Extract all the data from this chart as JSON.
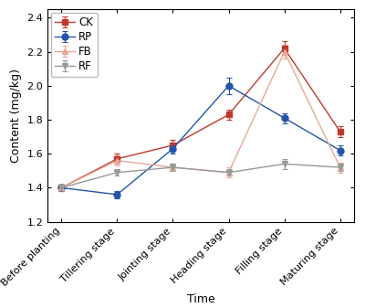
{
  "x_labels": [
    "Before planting",
    "Tillering stage",
    "Jointing stage",
    "Heading stage",
    "Filling stage",
    "Maturing stage"
  ],
  "series": {
    "CK": {
      "values": [
        1.4,
        1.57,
        1.65,
        1.83,
        2.22,
        1.73
      ],
      "errors": [
        0.02,
        0.03,
        0.03,
        0.03,
        0.04,
        0.03
      ],
      "color": "#c0392b",
      "marker": "s",
      "markersize": 5,
      "linewidth": 1.0,
      "linestyle": "-"
    },
    "RP": {
      "values": [
        1.4,
        1.36,
        1.63,
        2.0,
        1.81,
        1.62
      ],
      "errors": [
        0.02,
        0.02,
        0.03,
        0.05,
        0.03,
        0.03
      ],
      "color": "#2255aa",
      "marker": "o",
      "markersize": 5,
      "linewidth": 1.0,
      "linestyle": "-"
    },
    "FB": {
      "values": [
        1.4,
        1.56,
        1.52,
        1.49,
        2.2,
        1.52
      ],
      "errors": [
        0.02,
        0.03,
        0.02,
        0.03,
        0.04,
        0.03
      ],
      "color": "#e8a898",
      "marker": "^",
      "markersize": 5,
      "linewidth": 1.0,
      "linestyle": "-"
    },
    "RF": {
      "values": [
        1.4,
        1.49,
        1.52,
        1.49,
        1.54,
        1.52
      ],
      "errors": [
        0.02,
        0.02,
        0.02,
        0.02,
        0.03,
        0.02
      ],
      "color": "#999999",
      "marker": "v",
      "markersize": 5,
      "linewidth": 1.0,
      "linestyle": "-"
    }
  },
  "xlabel": "Time",
  "ylabel": "Content (mg/kg)",
  "ylim": [
    1.2,
    2.45
  ],
  "yticks": [
    1.2,
    1.4,
    1.6,
    1.8,
    2.0,
    2.2,
    2.4
  ],
  "legend_order": [
    "CK",
    "RP",
    "FB",
    "RF"
  ],
  "background_color": "#ffffff",
  "label_fontsize": 9,
  "tick_fontsize": 8,
  "legend_fontsize": 8.5
}
